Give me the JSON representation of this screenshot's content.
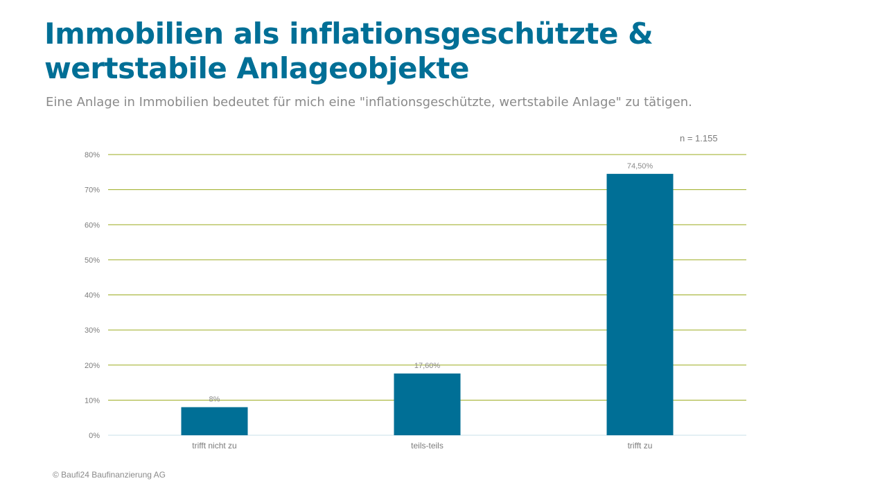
{
  "title": "Immobilien als inflationsgeschützte & wertstabile Anlageobjekte",
  "subtitle": "Eine Anlage in Immobilien bedeutet für mich eine \"inflationsgeschützte, wertstabile Anlage\" zu tätigen.",
  "sample_size": "n = 1.155",
  "footer": "© Baufi24 Baufinanzierung AG",
  "colors": {
    "title": "#006f96",
    "bar": "#006f96",
    "grid": "#9bab1f",
    "baseline": "#c9dfe8"
  },
  "chart_data": {
    "type": "bar",
    "categories": [
      "trifft nicht zu",
      "teils-teils",
      "trifft zu"
    ],
    "values": [
      8,
      17.6,
      74.5
    ],
    "data_labels": [
      "8%",
      "17,60%",
      "74,50%"
    ],
    "ylim": [
      0,
      80
    ],
    "y_ticks": [
      0,
      10,
      20,
      30,
      40,
      50,
      60,
      70,
      80
    ],
    "y_tick_labels": [
      "0%",
      "10%",
      "20%",
      "30%",
      "40%",
      "50%",
      "60%",
      "70%",
      "80%"
    ],
    "xlabel": "",
    "ylabel": "",
    "grid": true,
    "legend": false
  }
}
